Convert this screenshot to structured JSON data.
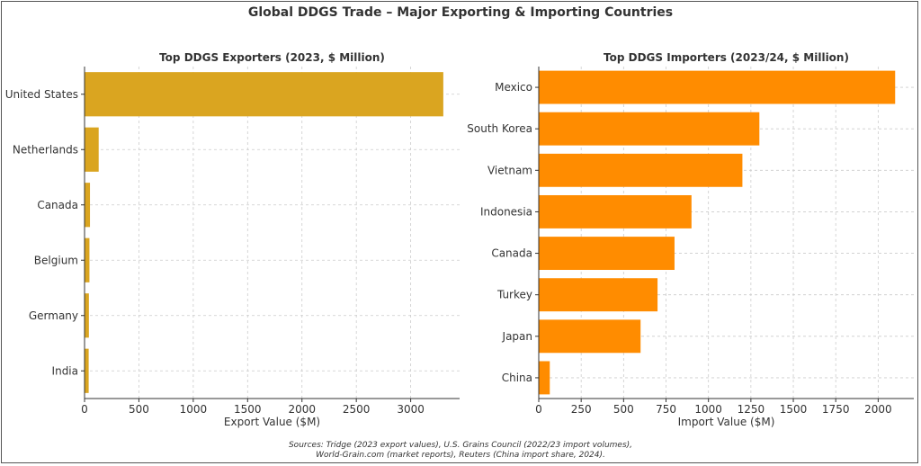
{
  "title": "Global DDGS Trade – Major Exporting & Importing Countries",
  "sources_line1": "Sources: Tridge (2023 export values), U.S. Grains Council (2022/23 import volumes),",
  "sources_line2": "World-Grain.com (market reports), Reuters (China import share, 2024).",
  "chart_data": [
    {
      "type": "bar",
      "orientation": "horizontal",
      "title": "Top DDGS Exporters (2023, $ Million)",
      "xlabel": "Export Value ($M)",
      "ylabel": "",
      "categories": [
        "United States",
        "Netherlands",
        "Canada",
        "Belgium",
        "Germany",
        "India"
      ],
      "values": [
        3300,
        130,
        50,
        45,
        40,
        38
      ],
      "xlim": [
        0,
        3450
      ],
      "xticks": [
        0,
        500,
        1000,
        1500,
        2000,
        2500,
        3000
      ],
      "color": "#DAA520",
      "grid": true
    },
    {
      "type": "bar",
      "orientation": "horizontal",
      "title": "Top DDGS Importers (2023/24, $ Million)",
      "xlabel": "Import Value ($M)",
      "ylabel": "",
      "categories": [
        "Mexico",
        "South Korea",
        "Vietnam",
        "Indonesia",
        "Canada",
        "Turkey",
        "Japan",
        "China"
      ],
      "values": [
        2100,
        1300,
        1200,
        900,
        800,
        700,
        600,
        65
      ],
      "xlim": [
        0,
        2210
      ],
      "xticks": [
        0,
        250,
        500,
        750,
        1000,
        1250,
        1500,
        1750,
        2000
      ],
      "color": "#FF8C00",
      "grid": true
    }
  ]
}
